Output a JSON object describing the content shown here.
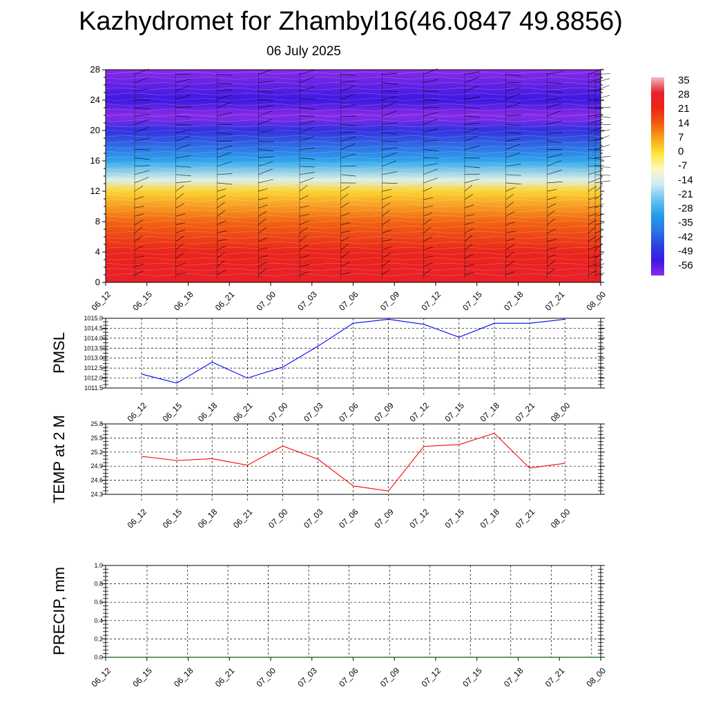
{
  "title": "Kazhydromet for Zhambyl16(46.0847 49.8856)",
  "subtitle": "06 July 2025",
  "time_labels": [
    "06_12",
    "06_15",
    "06_18",
    "06_21",
    "07_00",
    "07_03",
    "07_06",
    "07_09",
    "07_12",
    "07_15",
    "07_18",
    "07_21",
    "08_00"
  ],
  "colorbar": {
    "labels": [
      "35",
      "28",
      "21",
      "14",
      "7",
      "0",
      "-7",
      "-14",
      "-21",
      "-28",
      "-35",
      "-42",
      "-49",
      "-56"
    ],
    "stops": [
      "#f4b8c0",
      "#e8202a",
      "#ea2618",
      "#f05a10",
      "#f8a418",
      "#fde63c",
      "#fff7c0",
      "#d0ecf8",
      "#6cc4f0",
      "#22a0ea",
      "#2c78e4",
      "#2a44de",
      "#3c18e0",
      "#8a2ae8"
    ]
  },
  "chart_data": [
    {
      "type": "heatmap",
      "name": "temperature-wind-cross-section",
      "x": [
        "06_12",
        "06_15",
        "06_18",
        "06_21",
        "07_00",
        "07_03",
        "07_06",
        "07_09",
        "07_12",
        "07_15",
        "07_18",
        "07_21",
        "08_00"
      ],
      "yticks": [
        "0",
        "4",
        "8",
        "12",
        "16",
        "20",
        "24",
        "28"
      ],
      "ylim": [
        0,
        28
      ],
      "color_scale": [
        -56,
        35
      ],
      "temperature_by_level": [
        {
          "y": 0,
          "value": 28
        },
        {
          "y": 4,
          "value": 22
        },
        {
          "y": 8,
          "value": 13
        },
        {
          "y": 12,
          "value": 2
        },
        {
          "y": 13.5,
          "value": -12
        },
        {
          "y": 16,
          "value": -27
        },
        {
          "y": 20,
          "value": -45
        },
        {
          "y": 22,
          "value": -56
        },
        {
          "y": 24,
          "value": -49
        },
        {
          "y": 28,
          "value": -56
        }
      ]
    },
    {
      "type": "line",
      "ylabel": "PMSL",
      "x": [
        "06_12",
        "06_15",
        "06_18",
        "06_21",
        "07_00",
        "07_03",
        "07_06",
        "07_09",
        "07_12",
        "07_15",
        "07_18",
        "07_21",
        "08_00"
      ],
      "series": [
        {
          "color": "#0000ff",
          "values": [
            1012.2,
            1011.75,
            1012.8,
            1012.0,
            1012.55,
            1013.6,
            1014.75,
            1014.95,
            1014.7,
            1014.05,
            1014.75,
            1014.75,
            1014.95
          ]
        }
      ],
      "yticks": [
        "1011.5",
        "1012.0",
        "1012.5",
        "1013.0",
        "1013.5",
        "1014.0",
        "1014.5",
        "1015.0"
      ],
      "ylim": [
        1011.5,
        1015.0
      ],
      "grid": true
    },
    {
      "type": "line",
      "ylabel": "TEMP at 2 M",
      "x": [
        "06_12",
        "06_15",
        "06_18",
        "06_21",
        "07_00",
        "07_03",
        "07_06",
        "07_09",
        "07_12",
        "07_15",
        "07_18",
        "07_21",
        "08_00"
      ],
      "series": [
        {
          "color": "#ff0000",
          "values": [
            25.11,
            25.02,
            25.06,
            24.92,
            25.33,
            25.05,
            24.48,
            24.37,
            25.32,
            25.36,
            25.6,
            24.86,
            24.96
          ]
        }
      ],
      "yticks": [
        "24.3",
        "24.6",
        "24.9",
        "25.2",
        "25.5",
        "25.8"
      ],
      "ylim": [
        24.3,
        25.8
      ],
      "grid": true
    },
    {
      "type": "line",
      "ylabel": "PRECIP, mm",
      "x": [
        "06_12",
        "06_15",
        "06_18",
        "06_21",
        "07_00",
        "07_03",
        "07_06",
        "07_09",
        "07_12",
        "07_15",
        "07_18",
        "07_21",
        "08_00"
      ],
      "series": [
        {
          "color": "#006400",
          "values": [
            0,
            0,
            0,
            0,
            0,
            0,
            0,
            0,
            0,
            0,
            0,
            0,
            0
          ]
        }
      ],
      "yticks": [
        "0.0",
        "0.2",
        "0.4",
        "0.6",
        "0.8",
        "1.0"
      ],
      "ylim": [
        0,
        1
      ],
      "grid": true
    }
  ]
}
